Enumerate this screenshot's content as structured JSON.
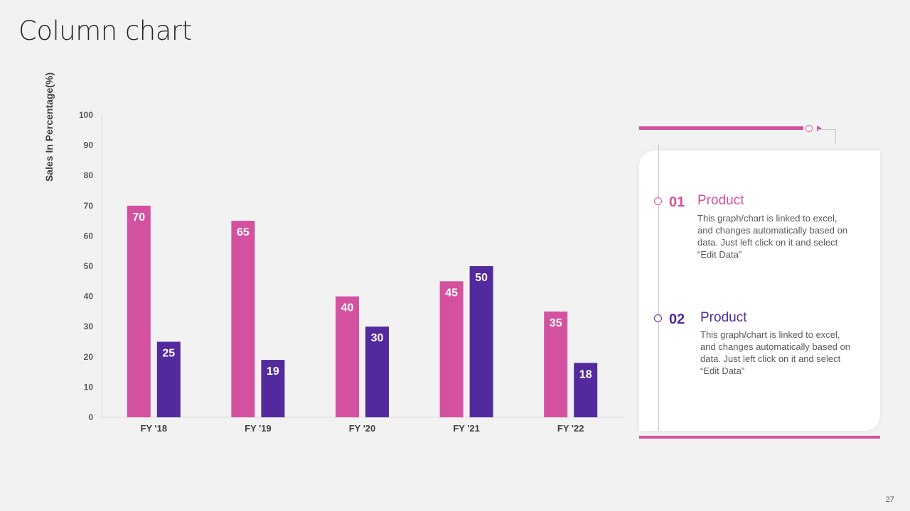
{
  "title": "Column chart",
  "page_number": "27",
  "colors": {
    "pink": "#d451a0",
    "purple": "#522a9e",
    "axis": "#d9d9d9"
  },
  "chart_data": {
    "type": "bar",
    "categories": [
      "FY '18",
      "FY '19",
      "FY '20",
      "FY '21",
      "FY '22"
    ],
    "series": [
      {
        "values": [
          70,
          65,
          40,
          45,
          35
        ],
        "color": "#d451a0"
      },
      {
        "values": [
          25,
          19,
          30,
          50,
          18
        ],
        "color": "#522a9e"
      }
    ],
    "ylabel": "Sales In Percentage(%)",
    "xlabel": "",
    "ylim": [
      0,
      100
    ],
    "yticks": [
      0,
      10,
      20,
      30,
      40,
      50,
      60,
      70,
      80,
      90,
      100
    ],
    "grid": false,
    "data_labels": true
  },
  "panel": {
    "items": [
      {
        "number": "01",
        "title": "Product",
        "text": "This graph/chart is linked to excel, and changes automatically based on data. Just left click on it and select “Edit Data”",
        "color": "#d451a0"
      },
      {
        "number": "02",
        "title": "Product",
        "text": "This graph/chart is linked to excel, and changes automatically based on data. Just left click on it and select “Edit Data”",
        "color": "#522a9e"
      }
    ]
  }
}
